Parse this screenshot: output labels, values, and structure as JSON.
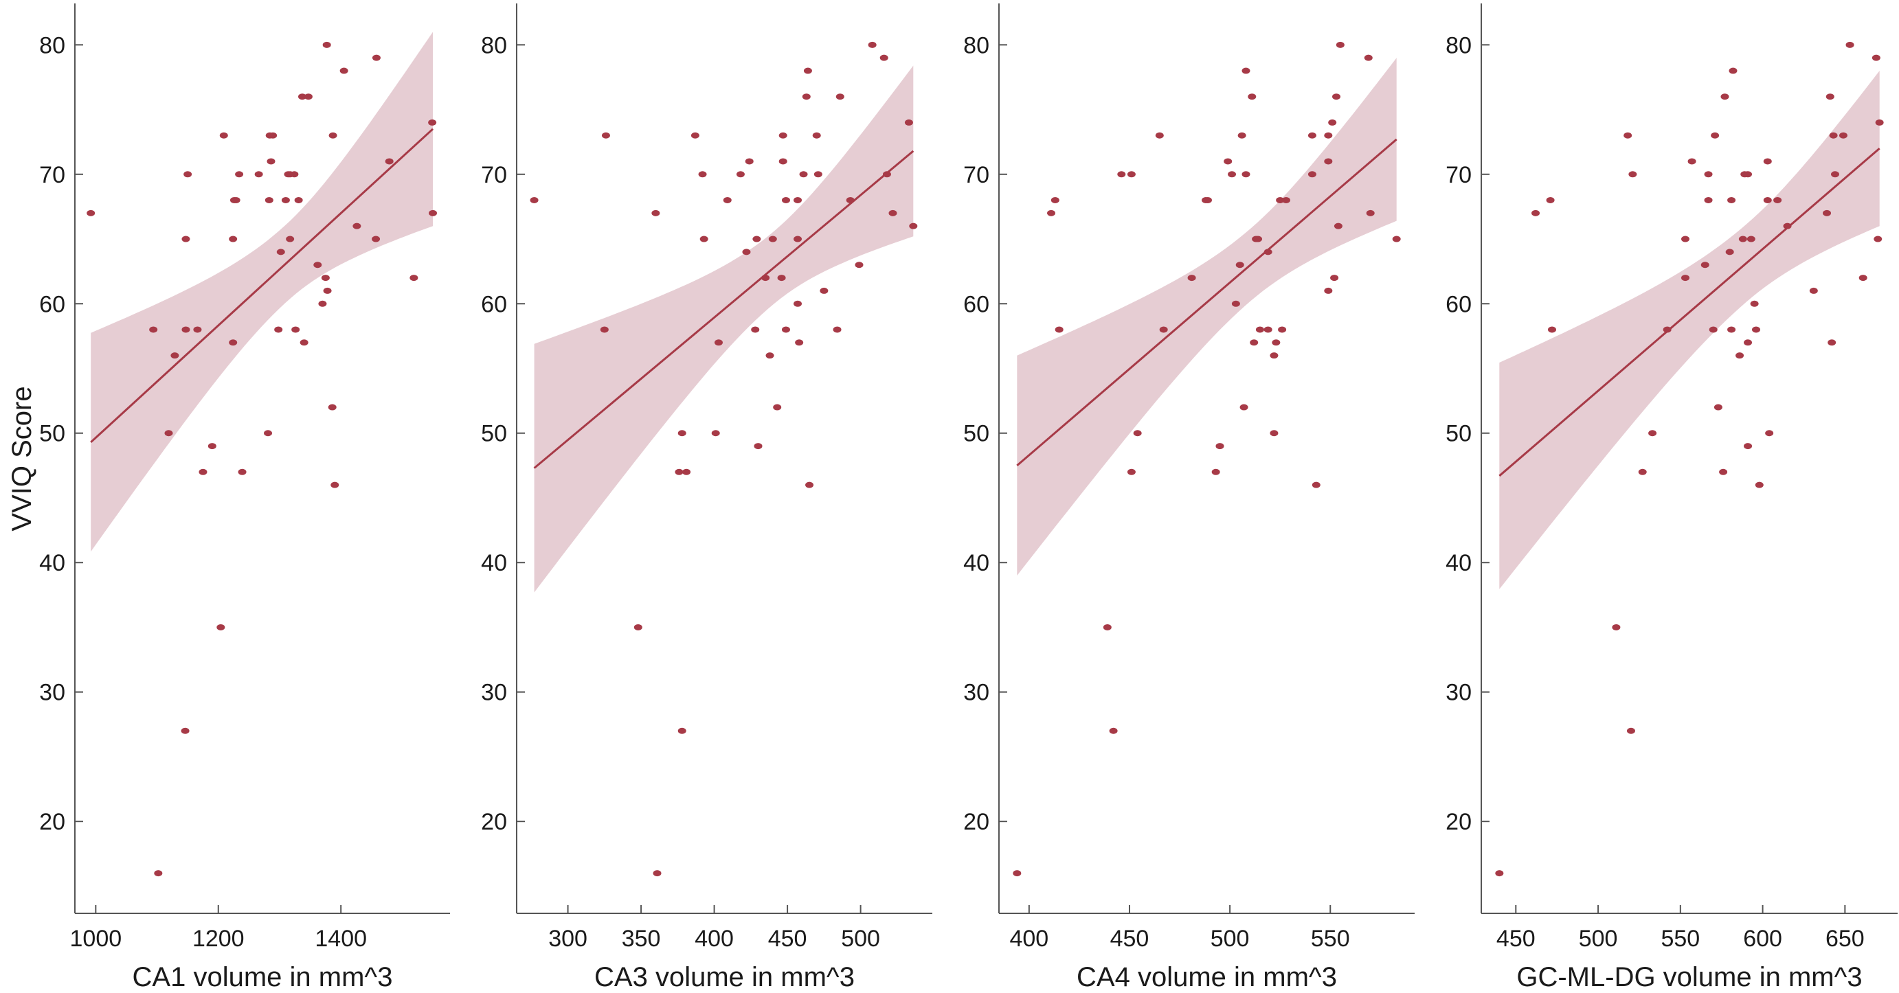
{
  "colors": {
    "point": "#a73a47",
    "line": "#a73a47",
    "band": "#e6cdd3",
    "axis": "#555555"
  },
  "ylabel": "VVIQ Score",
  "chart_data": [
    {
      "type": "scatter",
      "xlabel": "CA1 volume in mm^3",
      "ylabel": "VVIQ Score",
      "xlim": [
        966,
        1578
      ],
      "ylim": [
        12.9,
        83.2
      ],
      "xticks": [
        1000,
        1200,
        1400
      ],
      "yticks": [
        20,
        30,
        40,
        50,
        60,
        70,
        80
      ],
      "fit": {
        "x": [
          992,
          1550
        ],
        "y": [
          49.3,
          73.5
        ]
      },
      "ci": {
        "center_x": 1310,
        "min_half": 3.0,
        "left_half": 8.45,
        "right_half": 7.5
      },
      "points": [
        [
          992,
          67
        ],
        [
          1094,
          58
        ],
        [
          1129,
          56
        ],
        [
          1119,
          50
        ],
        [
          1102,
          16
        ],
        [
          1147,
          65
        ],
        [
          1150,
          70
        ],
        [
          1147,
          58
        ],
        [
          1146,
          27
        ],
        [
          1166,
          58
        ],
        [
          1175,
          47
        ],
        [
          1190,
          49
        ],
        [
          1204,
          35
        ],
        [
          1209,
          73
        ],
        [
          1224,
          65
        ],
        [
          1224,
          57
        ],
        [
          1226,
          68
        ],
        [
          1229,
          68
        ],
        [
          1234,
          70
        ],
        [
          1239,
          47
        ],
        [
          1266,
          70
        ],
        [
          1281,
          50
        ],
        [
          1283,
          68
        ],
        [
          1284,
          73
        ],
        [
          1289,
          73
        ],
        [
          1286,
          71
        ],
        [
          1298,
          58
        ],
        [
          1302,
          64
        ],
        [
          1310,
          68
        ],
        [
          1314,
          70
        ],
        [
          1317,
          70
        ],
        [
          1317,
          65
        ],
        [
          1324,
          70
        ],
        [
          1326,
          58
        ],
        [
          1331,
          68
        ],
        [
          1337,
          76
        ],
        [
          1347,
          76
        ],
        [
          1340,
          57
        ],
        [
          1362,
          63
        ],
        [
          1370,
          60
        ],
        [
          1375,
          62
        ],
        [
          1377,
          80
        ],
        [
          1378,
          61
        ],
        [
          1386,
          52
        ],
        [
          1387,
          73
        ],
        [
          1390,
          46
        ],
        [
          1405,
          78
        ],
        [
          1426,
          66
        ],
        [
          1457,
          65
        ],
        [
          1458,
          79
        ],
        [
          1479,
          71
        ],
        [
          1519,
          62
        ],
        [
          1549,
          74
        ],
        [
          1550,
          67
        ]
      ]
    },
    {
      "type": "scatter",
      "xlabel": "CA3 volume in mm^3",
      "ylabel": "",
      "xlim": [
        265,
        549
      ],
      "ylim": [
        12.9,
        83.2
      ],
      "xticks": [
        300,
        350,
        400,
        450,
        500
      ],
      "yticks": [
        20,
        30,
        40,
        50,
        60,
        70,
        80
      ],
      "fit": {
        "x": [
          277,
          536
        ],
        "y": [
          47.3,
          71.8
        ]
      },
      "ci": {
        "center_x": 440,
        "min_half": 2.8,
        "left_half": 9.6,
        "right_half": 6.6
      },
      "points": [
        [
          277,
          68
        ],
        [
          326,
          73
        ],
        [
          325,
          58
        ],
        [
          348,
          35
        ],
        [
          360,
          67
        ],
        [
          361,
          16
        ],
        [
          376,
          47
        ],
        [
          381,
          47
        ],
        [
          378,
          50
        ],
        [
          378,
          27
        ],
        [
          387,
          73
        ],
        [
          392,
          70
        ],
        [
          393,
          65
        ],
        [
          401,
          50
        ],
        [
          403,
          57
        ],
        [
          409,
          68
        ],
        [
          418,
          70
        ],
        [
          422,
          64
        ],
        [
          424,
          71
        ],
        [
          428,
          58
        ],
        [
          429,
          65
        ],
        [
          430,
          49
        ],
        [
          435,
          62
        ],
        [
          438,
          56
        ],
        [
          440,
          65
        ],
        [
          443,
          52
        ],
        [
          446,
          62
        ],
        [
          447,
          71
        ],
        [
          447,
          73
        ],
        [
          449,
          68
        ],
        [
          449,
          58
        ],
        [
          457,
          65
        ],
        [
          457,
          68
        ],
        [
          457,
          60
        ],
        [
          458,
          57
        ],
        [
          461,
          70
        ],
        [
          463,
          76
        ],
        [
          464,
          78
        ],
        [
          465,
          46
        ],
        [
          470,
          73
        ],
        [
          471,
          70
        ],
        [
          475,
          61
        ],
        [
          484,
          58
        ],
        [
          486,
          76
        ],
        [
          493,
          68
        ],
        [
          499,
          63
        ],
        [
          508,
          80
        ],
        [
          516,
          79
        ],
        [
          518,
          70
        ],
        [
          522,
          67
        ],
        [
          533,
          74
        ],
        [
          536,
          66
        ]
      ]
    },
    {
      "type": "scatter",
      "xlabel": "CA4 volume in mm^3",
      "ylabel": "",
      "xlim": [
        385,
        592
      ],
      "ylim": [
        12.9,
        83.2
      ],
      "xticks": [
        400,
        450,
        500,
        550
      ],
      "yticks": [
        20,
        30,
        40,
        50,
        60,
        70,
        80
      ],
      "fit": {
        "x": [
          394,
          583
        ],
        "y": [
          47.5,
          72.7
        ]
      },
      "ci": {
        "center_x": 510,
        "min_half": 2.8,
        "left_half": 8.5,
        "right_half": 6.3
      },
      "points": [
        [
          394,
          16
        ],
        [
          411,
          67
        ],
        [
          413,
          68
        ],
        [
          415,
          58
        ],
        [
          439,
          35
        ],
        [
          442,
          27
        ],
        [
          446,
          70
        ],
        [
          451,
          70
        ],
        [
          451,
          47
        ],
        [
          454,
          50
        ],
        [
          465,
          73
        ],
        [
          467,
          58
        ],
        [
          481,
          62
        ],
        [
          488,
          68
        ],
        [
          489,
          68
        ],
        [
          493,
          47
        ],
        [
          495,
          49
        ],
        [
          499,
          71
        ],
        [
          501,
          70
        ],
        [
          503,
          60
        ],
        [
          505,
          63
        ],
        [
          506,
          73
        ],
        [
          507,
          52
        ],
        [
          508,
          70
        ],
        [
          508,
          78
        ],
        [
          511,
          76
        ],
        [
          512,
          57
        ],
        [
          513,
          65
        ],
        [
          514,
          65
        ],
        [
          515,
          58
        ],
        [
          519,
          64
        ],
        [
          519,
          58
        ],
        [
          522,
          56
        ],
        [
          522,
          50
        ],
        [
          523,
          57
        ],
        [
          525,
          68
        ],
        [
          526,
          58
        ],
        [
          528,
          68
        ],
        [
          541,
          73
        ],
        [
          541,
          70
        ],
        [
          543,
          46
        ],
        [
          549,
          61
        ],
        [
          549,
          73
        ],
        [
          549,
          71
        ],
        [
          551,
          74
        ],
        [
          552,
          62
        ],
        [
          553,
          76
        ],
        [
          554,
          66
        ],
        [
          555,
          80
        ],
        [
          569,
          79
        ],
        [
          570,
          67
        ],
        [
          583,
          65
        ]
      ]
    },
    {
      "type": "scatter",
      "xlabel": "GC-ML-DG volume in mm^3",
      "ylabel": "",
      "xlim": [
        429,
        682
      ],
      "ylim": [
        12.9,
        83.2
      ],
      "xticks": [
        450,
        500,
        550,
        600,
        650
      ],
      "yticks": [
        20,
        30,
        40,
        50,
        60,
        70,
        80
      ],
      "fit": {
        "x": [
          440,
          671
        ],
        "y": [
          46.7,
          72.0
        ]
      },
      "ci": {
        "center_x": 590,
        "min_half": 3.0,
        "left_half": 8.75,
        "right_half": 6.0
      },
      "points": [
        [
          440,
          16
        ],
        [
          462,
          67
        ],
        [
          471,
          68
        ],
        [
          472,
          58
        ],
        [
          511,
          35
        ],
        [
          518,
          73
        ],
        [
          520,
          27
        ],
        [
          521,
          70
        ],
        [
          527,
          47
        ],
        [
          533,
          50
        ],
        [
          542,
          58
        ],
        [
          553,
          62
        ],
        [
          553,
          65
        ],
        [
          557,
          71
        ],
        [
          565,
          63
        ],
        [
          567,
          68
        ],
        [
          567,
          70
        ],
        [
          570,
          58
        ],
        [
          571,
          73
        ],
        [
          573,
          52
        ],
        [
          576,
          47
        ],
        [
          577,
          76
        ],
        [
          580,
          64
        ],
        [
          581,
          68
        ],
        [
          581,
          58
        ],
        [
          582,
          78
        ],
        [
          586,
          56
        ],
        [
          588,
          65
        ],
        [
          589,
          70
        ],
        [
          591,
          70
        ],
        [
          591,
          57
        ],
        [
          591,
          49
        ],
        [
          593,
          65
        ],
        [
          595,
          60
        ],
        [
          596,
          58
        ],
        [
          598,
          46
        ],
        [
          603,
          71
        ],
        [
          603,
          68
        ],
        [
          604,
          50
        ],
        [
          609,
          68
        ],
        [
          615,
          66
        ],
        [
          631,
          61
        ],
        [
          639,
          67
        ],
        [
          641,
          76
        ],
        [
          642,
          57
        ],
        [
          643,
          73
        ],
        [
          644,
          70
        ],
        [
          649,
          73
        ],
        [
          653,
          80
        ],
        [
          661,
          62
        ],
        [
          669,
          79
        ],
        [
          670,
          65
        ],
        [
          671,
          74
        ]
      ]
    }
  ]
}
